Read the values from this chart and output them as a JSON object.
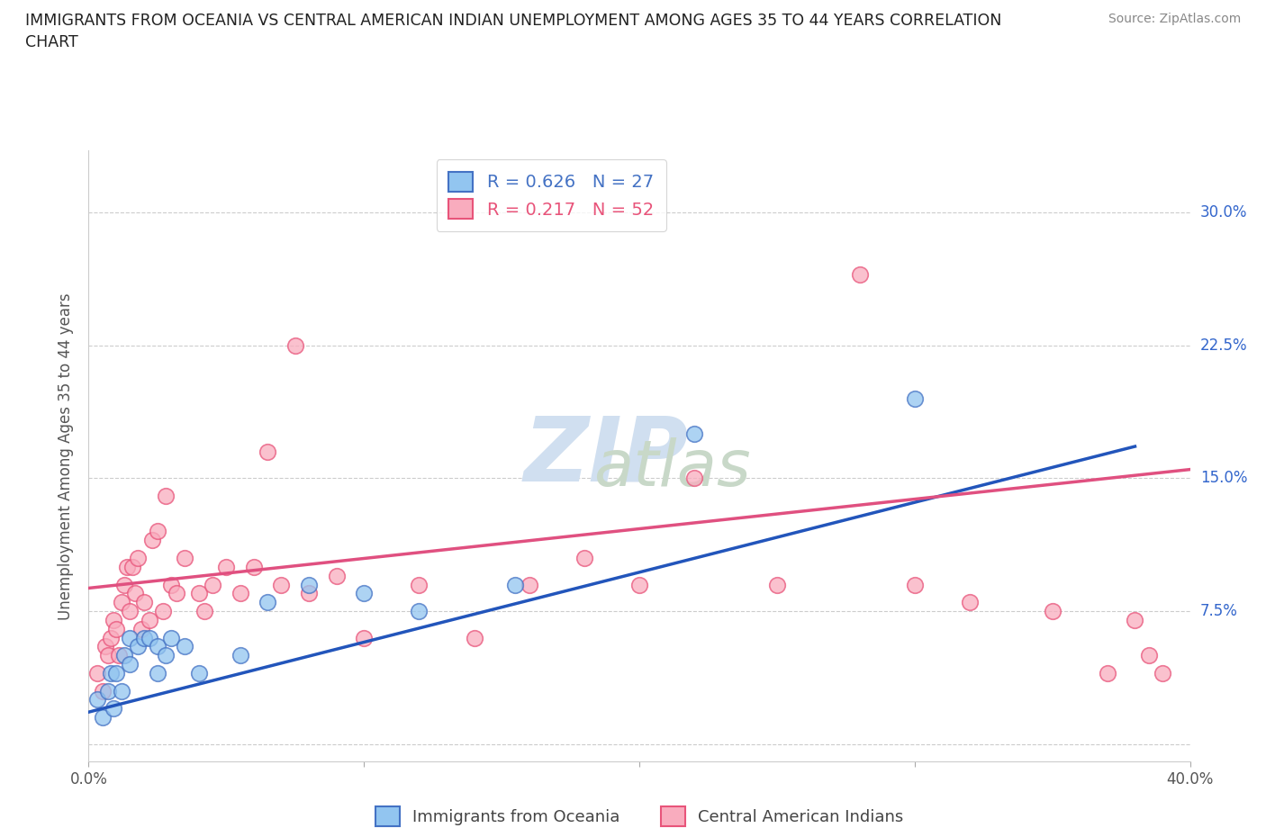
{
  "title": "IMMIGRANTS FROM OCEANIA VS CENTRAL AMERICAN INDIAN UNEMPLOYMENT AMONG AGES 35 TO 44 YEARS CORRELATION\nCHART",
  "source": "Source: ZipAtlas.com",
  "ylabel": "Unemployment Among Ages 35 to 44 years",
  "xlim": [
    0.0,
    0.4
  ],
  "ylim": [
    -0.01,
    0.335
  ],
  "x_ticks": [
    0.0,
    0.1,
    0.2,
    0.3,
    0.4
  ],
  "x_tick_labels": [
    "0.0%",
    "",
    "",
    "",
    "40.0%"
  ],
  "y_ticks": [
    0.0,
    0.075,
    0.15,
    0.225,
    0.3
  ],
  "y_tick_labels": [
    "",
    "7.5%",
    "15.0%",
    "22.5%",
    "30.0%"
  ],
  "r_blue": 0.626,
  "n_blue": 27,
  "r_pink": 0.217,
  "n_pink": 52,
  "blue_scatter_color": "#92C5F0",
  "blue_edge_color": "#4472C4",
  "pink_scatter_color": "#F9ACBE",
  "pink_edge_color": "#E8547A",
  "blue_line_color": "#2255BB",
  "pink_line_color": "#E05080",
  "legend_label_blue": "Immigrants from Oceania",
  "legend_label_pink": "Central American Indians",
  "blue_scatter_x": [
    0.003,
    0.005,
    0.007,
    0.008,
    0.009,
    0.01,
    0.012,
    0.013,
    0.015,
    0.015,
    0.018,
    0.02,
    0.022,
    0.025,
    0.025,
    0.028,
    0.03,
    0.035,
    0.04,
    0.055,
    0.065,
    0.08,
    0.1,
    0.12,
    0.155,
    0.22,
    0.3
  ],
  "blue_scatter_y": [
    0.025,
    0.015,
    0.03,
    0.04,
    0.02,
    0.04,
    0.03,
    0.05,
    0.045,
    0.06,
    0.055,
    0.06,
    0.06,
    0.04,
    0.055,
    0.05,
    0.06,
    0.055,
    0.04,
    0.05,
    0.08,
    0.09,
    0.085,
    0.075,
    0.09,
    0.175,
    0.195
  ],
  "pink_scatter_x": [
    0.003,
    0.005,
    0.006,
    0.007,
    0.008,
    0.009,
    0.01,
    0.011,
    0.012,
    0.013,
    0.014,
    0.015,
    0.016,
    0.017,
    0.018,
    0.019,
    0.02,
    0.022,
    0.023,
    0.025,
    0.027,
    0.028,
    0.03,
    0.032,
    0.035,
    0.04,
    0.042,
    0.045,
    0.05,
    0.055,
    0.06,
    0.065,
    0.07,
    0.075,
    0.08,
    0.09,
    0.1,
    0.12,
    0.14,
    0.16,
    0.18,
    0.2,
    0.22,
    0.25,
    0.28,
    0.3,
    0.32,
    0.35,
    0.37,
    0.38,
    0.385,
    0.39
  ],
  "pink_scatter_y": [
    0.04,
    0.03,
    0.055,
    0.05,
    0.06,
    0.07,
    0.065,
    0.05,
    0.08,
    0.09,
    0.1,
    0.075,
    0.1,
    0.085,
    0.105,
    0.065,
    0.08,
    0.07,
    0.115,
    0.12,
    0.075,
    0.14,
    0.09,
    0.085,
    0.105,
    0.085,
    0.075,
    0.09,
    0.1,
    0.085,
    0.1,
    0.165,
    0.09,
    0.225,
    0.085,
    0.095,
    0.06,
    0.09,
    0.06,
    0.09,
    0.105,
    0.09,
    0.15,
    0.09,
    0.265,
    0.09,
    0.08,
    0.075,
    0.04,
    0.07,
    0.05,
    0.04
  ],
  "blue_line_x0": 0.0,
  "blue_line_y0": 0.018,
  "blue_line_x1": 0.38,
  "blue_line_y1": 0.168,
  "pink_line_x0": 0.0,
  "pink_line_y0": 0.088,
  "pink_line_x1": 0.4,
  "pink_line_y1": 0.155
}
